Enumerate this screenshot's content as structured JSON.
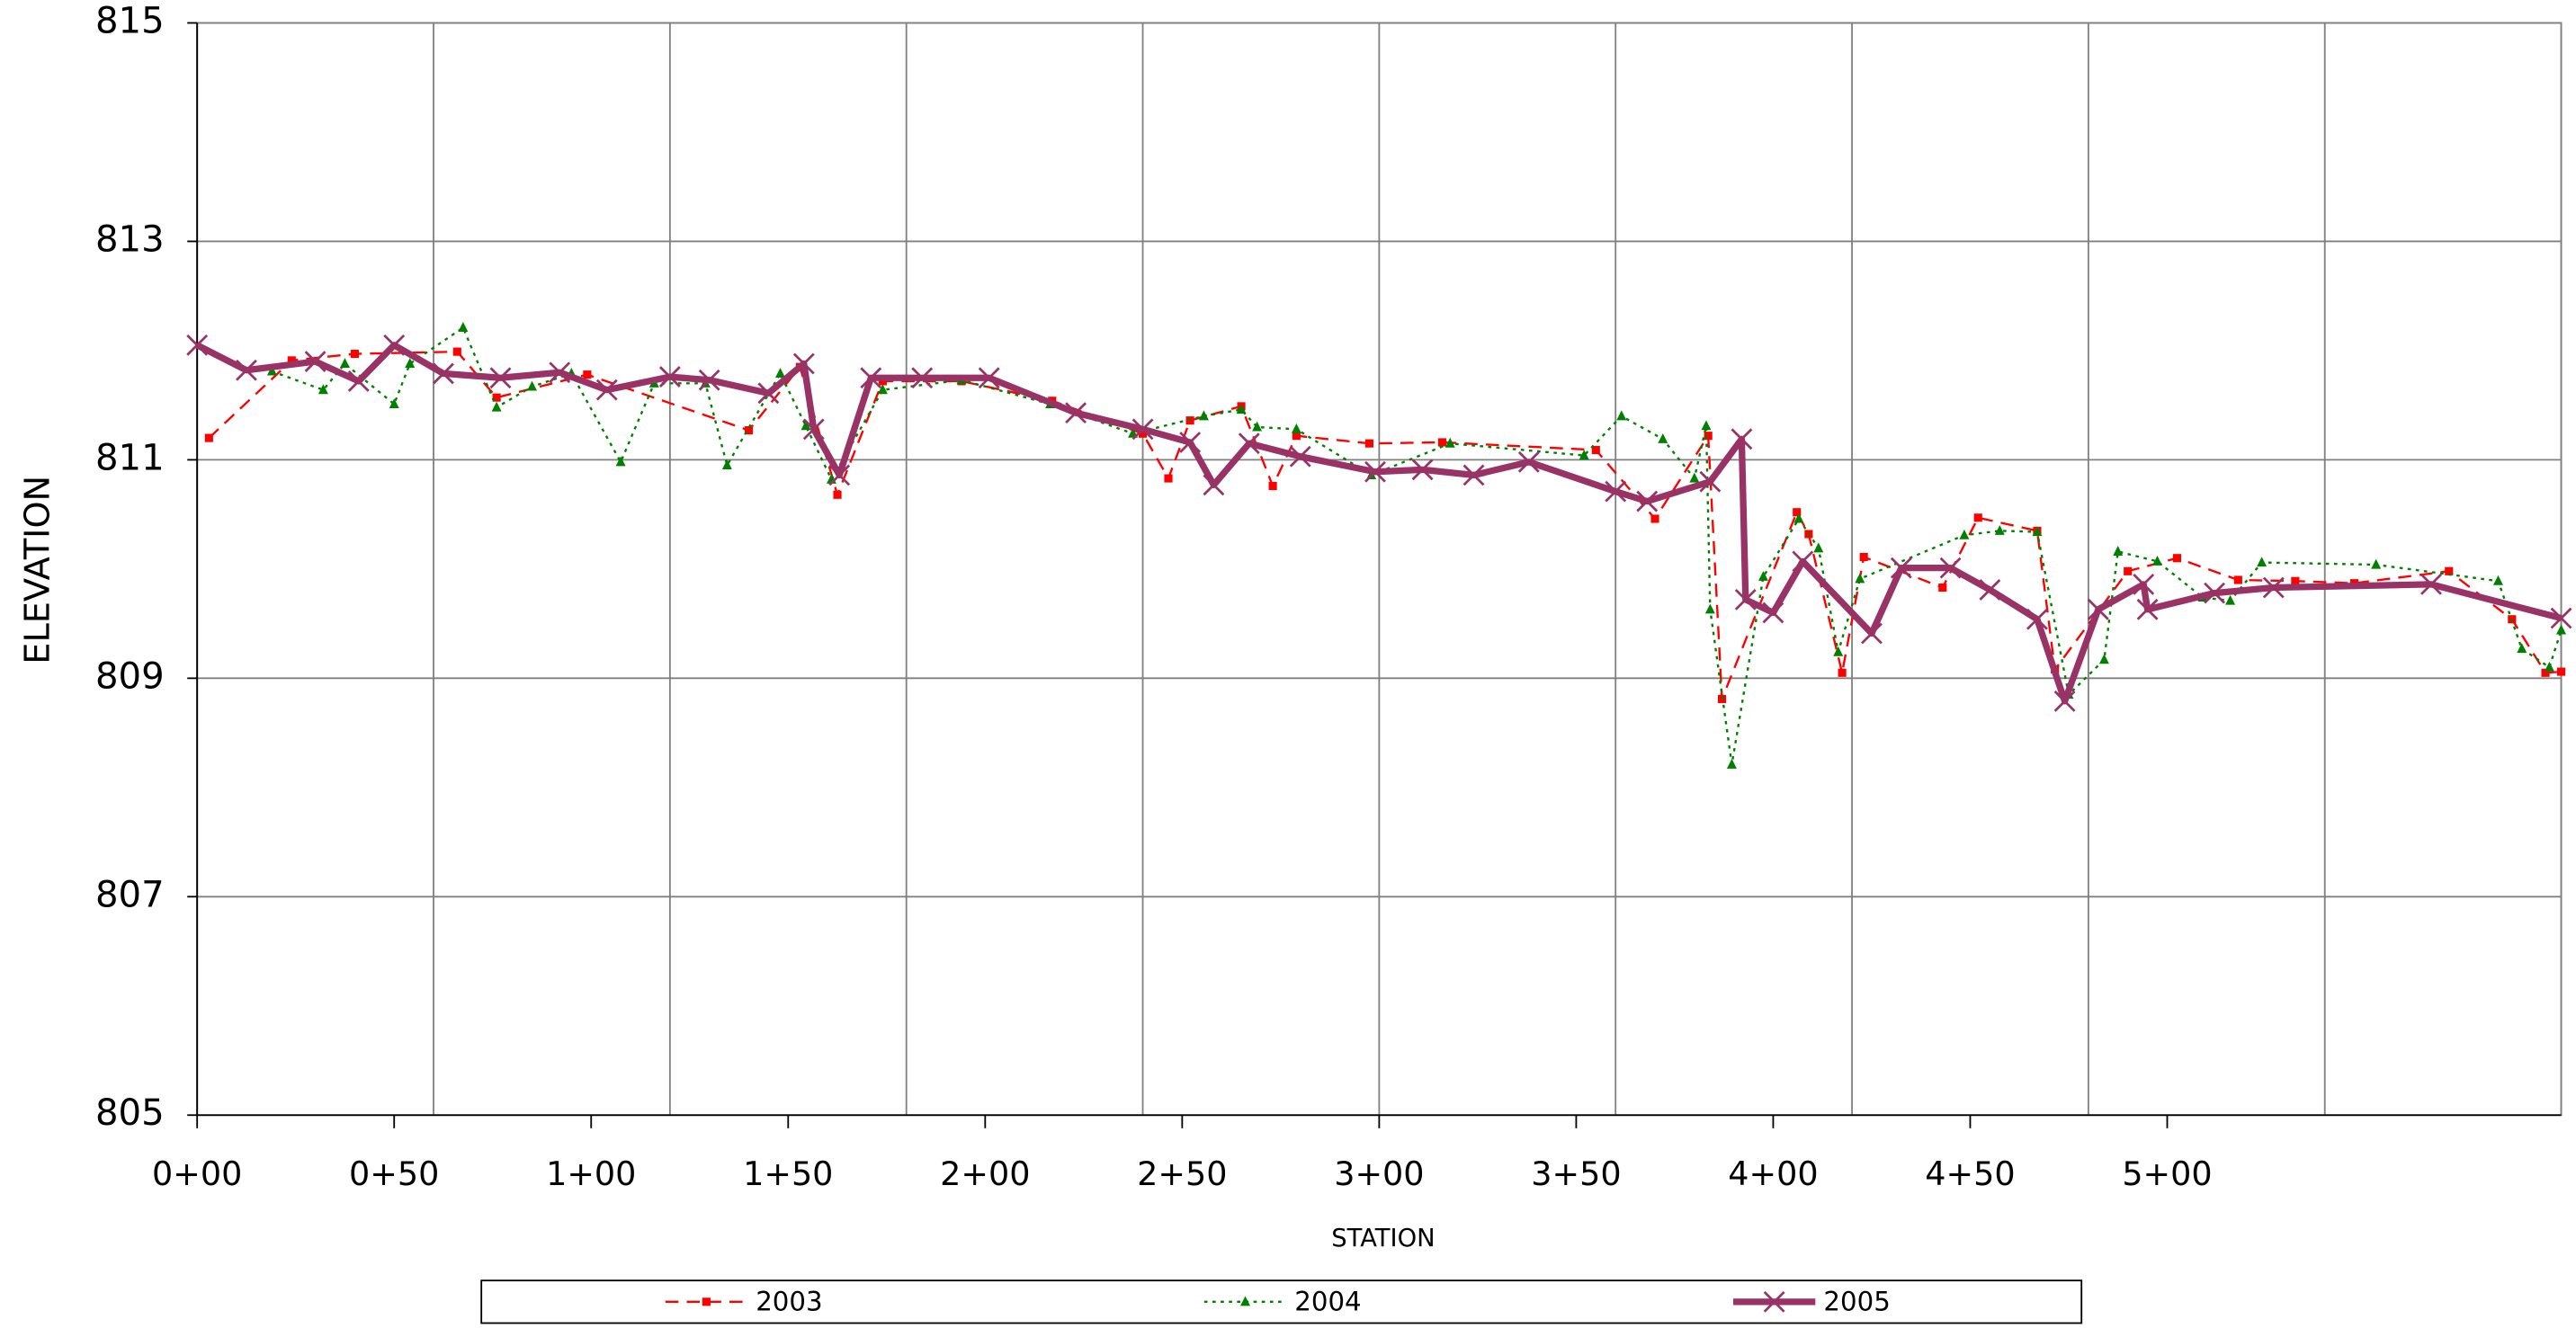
{
  "chart_data": {
    "type": "line",
    "x_label": "STATION",
    "y_label": "ELEVATION",
    "xlim": [
      0,
      600
    ],
    "ylim": [
      805,
      815
    ],
    "xticks": [
      {
        "value": 0,
        "label": "0+00"
      },
      {
        "value": 50,
        "label": "0+50"
      },
      {
        "value": 100,
        "label": "1+00"
      },
      {
        "value": 150,
        "label": "1+50"
      },
      {
        "value": 200,
        "label": "2+00"
      },
      {
        "value": 250,
        "label": "2+50"
      },
      {
        "value": 300,
        "label": "3+00"
      },
      {
        "value": 350,
        "label": "3+50"
      },
      {
        "value": 400,
        "label": "4+00"
      },
      {
        "value": 450,
        "label": "4+50"
      },
      {
        "value": 500,
        "label": "5+00"
      }
    ],
    "xgrid": [
      0,
      60,
      120,
      180,
      240,
      300,
      360,
      420,
      480,
      540,
      600
    ],
    "yticks": [
      805,
      807,
      809,
      811,
      813,
      815
    ],
    "grid": true,
    "legend": "bottom",
    "series": [
      {
        "name": "2003",
        "color": "#ff0000",
        "dash": "8,5",
        "width": 1.3,
        "marker": "square",
        "x": [
          3,
          24,
          40,
          66,
          76,
          99,
          140,
          153,
          162.5,
          174,
          194,
          217,
          240,
          246.5,
          252,
          265,
          273,
          279,
          297.5,
          316,
          355,
          370,
          383.5,
          387,
          406,
          409,
          417.5,
          423,
          443,
          452,
          467,
          471.5,
          490,
          502.5,
          518,
          532.5,
          547.5,
          571.5,
          587.5,
          596,
          600
        ],
        "values": [
          811.2,
          811.91,
          811.97,
          811.99,
          811.57,
          811.78,
          811.27,
          811.85,
          810.68,
          811.72,
          811.72,
          811.54,
          811.24,
          810.83,
          811.36,
          811.49,
          810.76,
          811.22,
          811.15,
          811.16,
          811.09,
          810.46,
          811.22,
          808.81,
          810.52,
          810.32,
          809.05,
          810.11,
          809.83,
          810.47,
          810.35,
          809.08,
          809.98,
          810.1,
          809.9,
          809.89,
          809.87,
          809.98,
          809.54,
          809.05,
          809.06
        ]
      },
      {
        "name": "2004",
        "color": "#008000",
        "dash": "2,3",
        "width": 1.3,
        "marker": "triangle",
        "x": [
          19,
          32,
          37.5,
          50,
          54,
          67.5,
          76,
          85,
          95,
          107.5,
          116,
          129,
          134.5,
          148,
          154.5,
          161,
          174,
          194,
          216.5,
          237.5,
          255.5,
          265,
          269,
          279,
          298,
          318,
          352,
          361.5,
          372,
          380,
          383,
          384,
          389.5,
          397.5,
          406.5,
          411.5,
          416.5,
          422,
          448.5,
          457.5,
          467,
          475,
          484,
          487.5,
          497.5,
          509,
          516,
          524,
          553,
          584,
          590,
          597,
          600
        ],
        "values": [
          811.81,
          811.64,
          811.88,
          811.51,
          811.88,
          812.21,
          811.48,
          811.67,
          811.79,
          810.98,
          811.7,
          811.7,
          810.95,
          811.79,
          811.31,
          810.82,
          811.64,
          811.73,
          811.51,
          811.24,
          811.4,
          811.46,
          811.3,
          811.28,
          810.86,
          811.15,
          811.04,
          811.4,
          811.19,
          810.83,
          811.31,
          809.63,
          808.21,
          809.93,
          810.46,
          810.19,
          809.24,
          809.91,
          810.31,
          810.35,
          810.34,
          808.85,
          809.17,
          810.16,
          810.07,
          809.74,
          809.71,
          810.06,
          810.04,
          809.89,
          809.27,
          809.1,
          809.44
        ]
      },
      {
        "name": "2005",
        "color": "#993366",
        "dash": "",
        "width": 4,
        "marker": "x",
        "x": [
          0,
          12.5,
          30,
          41,
          50,
          62.5,
          77,
          92,
          104,
          120,
          130,
          145,
          154,
          156.5,
          163,
          171,
          184,
          201,
          223,
          240,
          252,
          258,
          267,
          280,
          299,
          311,
          324,
          338,
          360,
          368,
          384,
          392,
          393,
          400,
          407.5,
          425,
          432.5,
          445,
          455,
          467,
          474,
          482.5,
          494,
          495,
          512,
          527,
          567,
          600
        ],
        "values": [
          812.05,
          811.82,
          811.9,
          811.72,
          812.05,
          811.79,
          811.75,
          811.8,
          811.64,
          811.76,
          811.73,
          811.61,
          811.88,
          811.28,
          810.86,
          811.75,
          811.75,
          811.75,
          811.43,
          811.28,
          811.16,
          810.77,
          811.15,
          811.03,
          810.89,
          810.91,
          810.86,
          810.98,
          810.71,
          810.62,
          810.8,
          811.19,
          809.72,
          809.6,
          810.07,
          809.41,
          810.01,
          810.01,
          809.81,
          809.54,
          808.79,
          809.63,
          809.86,
          809.63,
          809.78,
          809.83,
          809.86,
          809.55
        ]
      }
    ]
  }
}
